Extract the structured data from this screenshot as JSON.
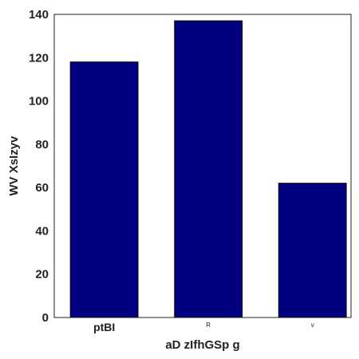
{
  "chart_data": {
    "type": "bar",
    "categories": [
      "ptBI",
      "R",
      "v"
    ],
    "values": [
      118,
      137,
      62
    ],
    "title": "",
    "xlabel": "aD zIfhGSp g",
    "ylabel": "WV XsIzyv",
    "ylim": [
      0,
      140
    ],
    "yticks": [
      "0",
      "20",
      "40",
      "60",
      "80",
      "100",
      "120",
      "140"
    ],
    "grid": false,
    "legend": "none",
    "bar_color": "#000080",
    "edge_color": "#000000"
  }
}
